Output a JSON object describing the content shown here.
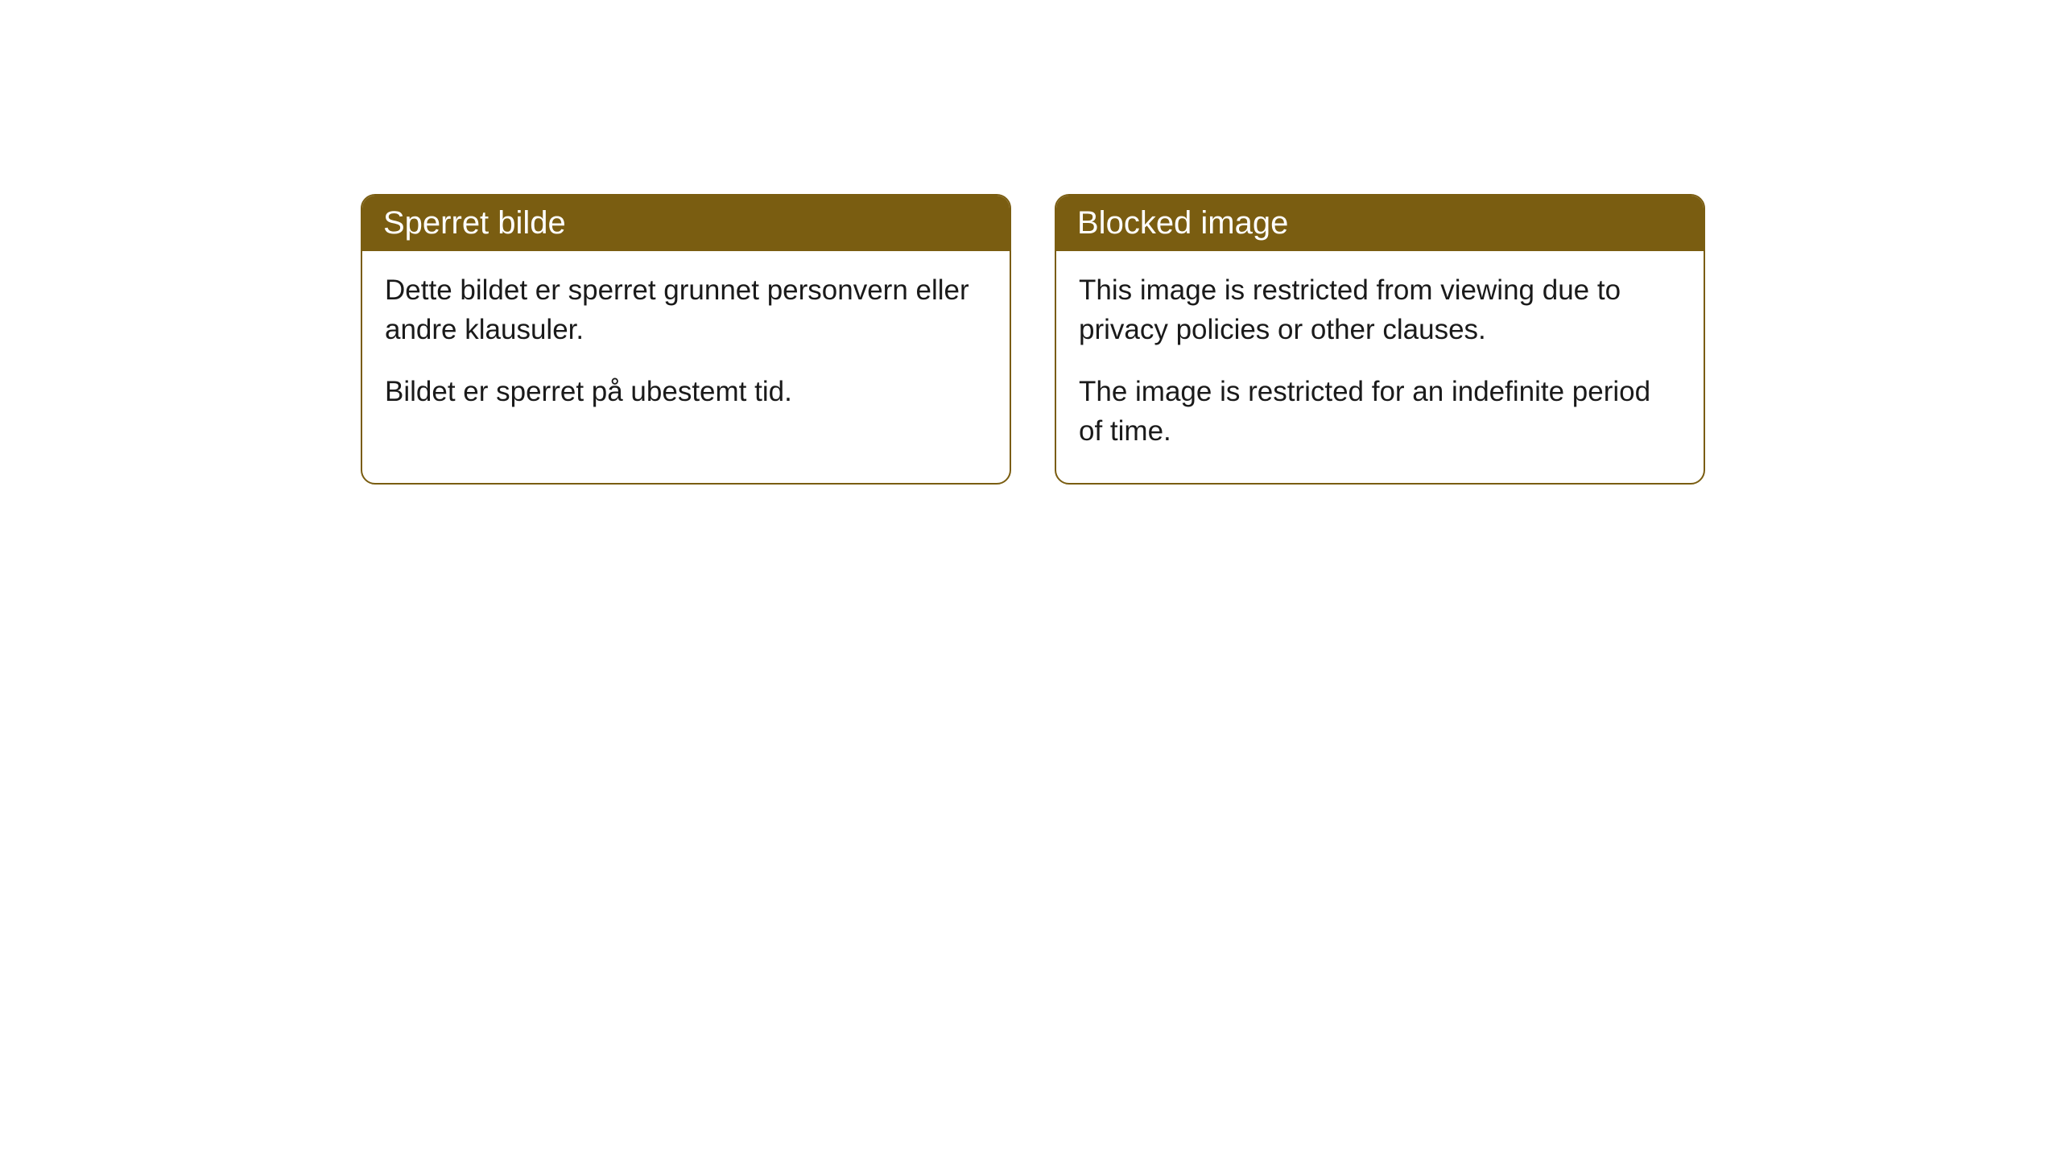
{
  "cards": [
    {
      "title": "Sperret bilde",
      "paragraph1": "Dette bildet er sperret grunnet personvern eller andre klausuler.",
      "paragraph2": "Bildet er sperret på ubestemt tid."
    },
    {
      "title": "Blocked image",
      "paragraph1": "This image is restricted from viewing due to privacy policies or other clauses.",
      "paragraph2": "The image is restricted for an indefinite period of time."
    }
  ],
  "colors": {
    "header_bg": "#7a5d11",
    "header_text": "#ffffff",
    "body_text": "#1a1a1a",
    "border": "#7a5d11",
    "page_bg": "#ffffff"
  }
}
